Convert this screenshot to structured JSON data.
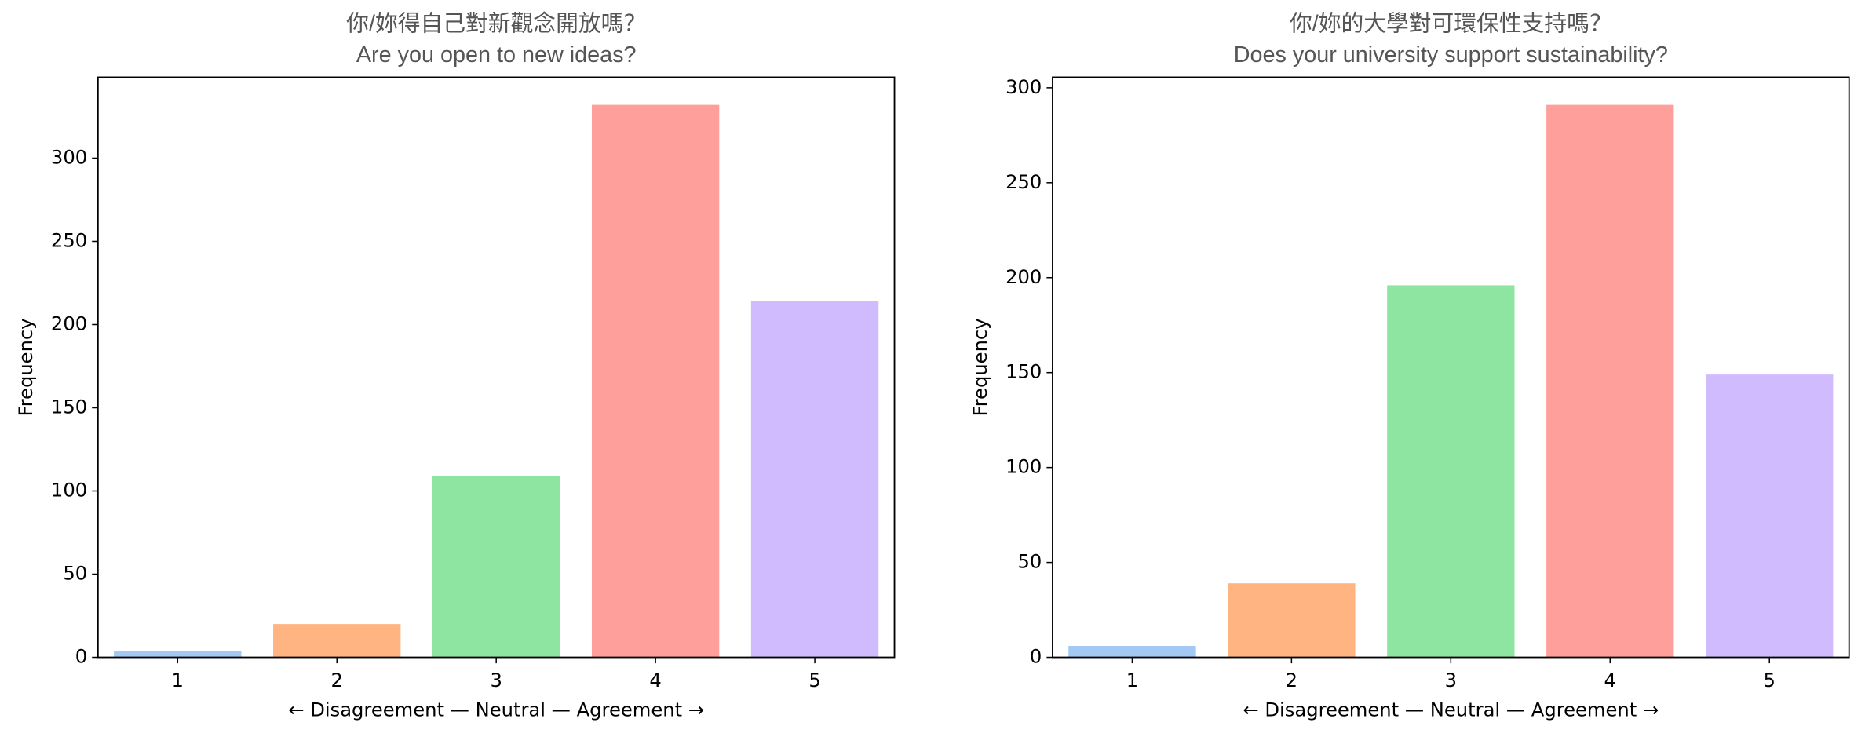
{
  "chart_data": [
    {
      "type": "bar",
      "title": "你/妳得自己對新觀念開放嗎？",
      "subtitle": "Are you open to new ideas?",
      "categories": [
        "1",
        "2",
        "3",
        "4",
        "5"
      ],
      "values": [
        4,
        20,
        109,
        332,
        214
      ],
      "colors": [
        "#a1c9f4",
        "#ffb482",
        "#8de5a1",
        "#ff9f9b",
        "#d0bbff"
      ],
      "x_label": "← Disagreement — Neutral — Agreement →",
      "y_label": "Frequency",
      "ylim": [
        0,
        348.6
      ],
      "yticks": [
        0,
        50,
        100,
        150,
        200,
        250,
        300
      ]
    },
    {
      "type": "bar",
      "title": "你/妳的大學對可環保性支持嗎？",
      "subtitle": "Does your university support sustainability?",
      "categories": [
        "1",
        "2",
        "3",
        "4",
        "5"
      ],
      "values": [
        6,
        39,
        196,
        291,
        149
      ],
      "colors": [
        "#a1c9f4",
        "#ffb482",
        "#8de5a1",
        "#ff9f9b",
        "#d0bbff"
      ],
      "x_label": "← Disagreement — Neutral — Agreement →",
      "y_label": "Frequency",
      "ylim": [
        0,
        305.55
      ],
      "yticks": [
        0,
        50,
        100,
        150,
        200,
        250,
        300
      ]
    }
  ]
}
